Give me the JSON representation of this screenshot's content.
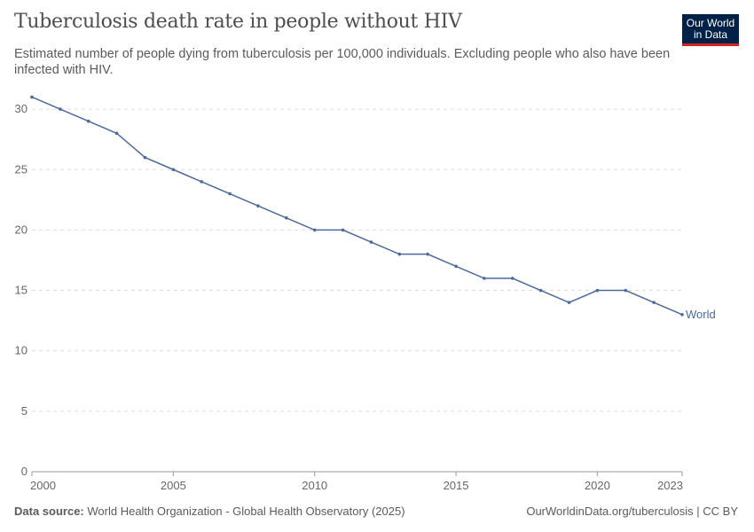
{
  "header": {
    "title": "Tuberculosis death rate in people without HIV",
    "subtitle": "Estimated number of people dying from tuberculosis per 100,000 individuals. Excluding people who also have been infected with HIV.",
    "logo_text": "Our World in Data"
  },
  "footer": {
    "source_label": "Data source:",
    "source_text": "World Health Organization - Global Health Observatory (2025)",
    "url_license": "OurWorldinData.org/tuberculosis | CC BY"
  },
  "chart_data": {
    "type": "line",
    "title": "Tuberculosis death rate in people without HIV",
    "xlim": [
      2000,
      2023
    ],
    "ylim": [
      0,
      31
    ],
    "x_ticks": [
      2000,
      2005,
      2010,
      2015,
      2020,
      2023
    ],
    "y_ticks": [
      0,
      5,
      10,
      15,
      20,
      25,
      30
    ],
    "grid": "horizontal dashed",
    "legend": "inline-right",
    "series": [
      {
        "name": "World",
        "color": "#4c6a9c",
        "x": [
          2000,
          2001,
          2002,
          2003,
          2004,
          2005,
          2006,
          2007,
          2008,
          2009,
          2010,
          2011,
          2012,
          2013,
          2014,
          2015,
          2016,
          2017,
          2018,
          2019,
          2020,
          2021,
          2022,
          2023
        ],
        "values": [
          31,
          30,
          29,
          28,
          26,
          25,
          24,
          23,
          22,
          21,
          20,
          20,
          19,
          18,
          18,
          17,
          16,
          16,
          15,
          14,
          15,
          15,
          14,
          13
        ]
      }
    ]
  }
}
